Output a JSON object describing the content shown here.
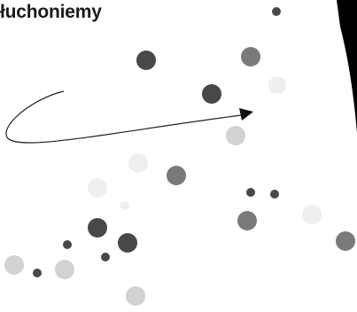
{
  "heading": {
    "text": "łuchoniemy"
  },
  "colors": {
    "dark_dot": "#484848",
    "mid_dot": "#7a7a7a",
    "light_dot": "#d2d2d2",
    "very_light_dot": "#efefef",
    "stroke": "#222222",
    "wedge": "#000000"
  },
  "illustration": {
    "arrow": "curved-arrow",
    "shape": "black-wedge",
    "dot_colors": [
      "dark",
      "mid",
      "light",
      "very-light"
    ]
  }
}
